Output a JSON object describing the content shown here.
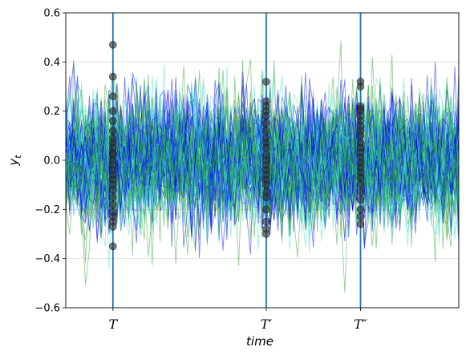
{
  "chart_data": {
    "type": "line",
    "title": "",
    "xlabel": "time",
    "ylabel": "y_t",
    "ylim": [
      -0.6,
      0.6
    ],
    "yticks": [
      -0.6,
      -0.4,
      -0.2,
      0.0,
      0.2,
      0.4,
      0.6
    ],
    "ytick_labels": [
      "−0.6",
      "−0.4",
      "−0.2",
      "0.0",
      "0.2",
      "0.4",
      "0.6"
    ],
    "xlim": [
      0,
      100
    ],
    "xticks": [
      {
        "label": "T",
        "prime": "",
        "x": 12
      },
      {
        "label": "T",
        "prime": "′",
        "x": 51
      },
      {
        "label": "T",
        "prime": "″",
        "x": 75
      }
    ],
    "vlines_color": "#1f77b4",
    "grid": "horizontal",
    "legend": "none",
    "series_count": 90,
    "series_colors": [
      "#0000ff",
      "#40e0d0",
      "#2ca02c"
    ],
    "series_opacity": 0.5,
    "noise_std": 0.13,
    "samples": [
      {
        "x": 12,
        "values": [
          0.47,
          0.34,
          0.26,
          0.2,
          0.16,
          0.12,
          0.09,
          0.07,
          0.05,
          0.03,
          0.02,
          0.0,
          -0.02,
          -0.04,
          -0.06,
          -0.08,
          -0.1,
          -0.12,
          -0.15,
          -0.18,
          -0.21,
          -0.23,
          -0.25,
          -0.27,
          -0.35
        ]
      },
      {
        "x": 51,
        "values": [
          0.32,
          0.24,
          0.22,
          0.2,
          0.18,
          0.15,
          0.12,
          0.09,
          0.07,
          0.05,
          0.02,
          0.0,
          -0.02,
          -0.04,
          -0.06,
          -0.08,
          -0.1,
          -0.13,
          -0.15,
          -0.2,
          -0.25,
          -0.28,
          -0.3
        ]
      },
      {
        "x": 75,
        "values": [
          0.32,
          0.3,
          0.22,
          0.21,
          0.2,
          0.18,
          0.16,
          0.14,
          0.12,
          0.1,
          0.07,
          0.05,
          0.03,
          0.01,
          -0.01,
          -0.03,
          -0.05,
          -0.07,
          -0.1,
          -0.13,
          -0.16,
          -0.2,
          -0.23,
          -0.26
        ]
      }
    ]
  }
}
